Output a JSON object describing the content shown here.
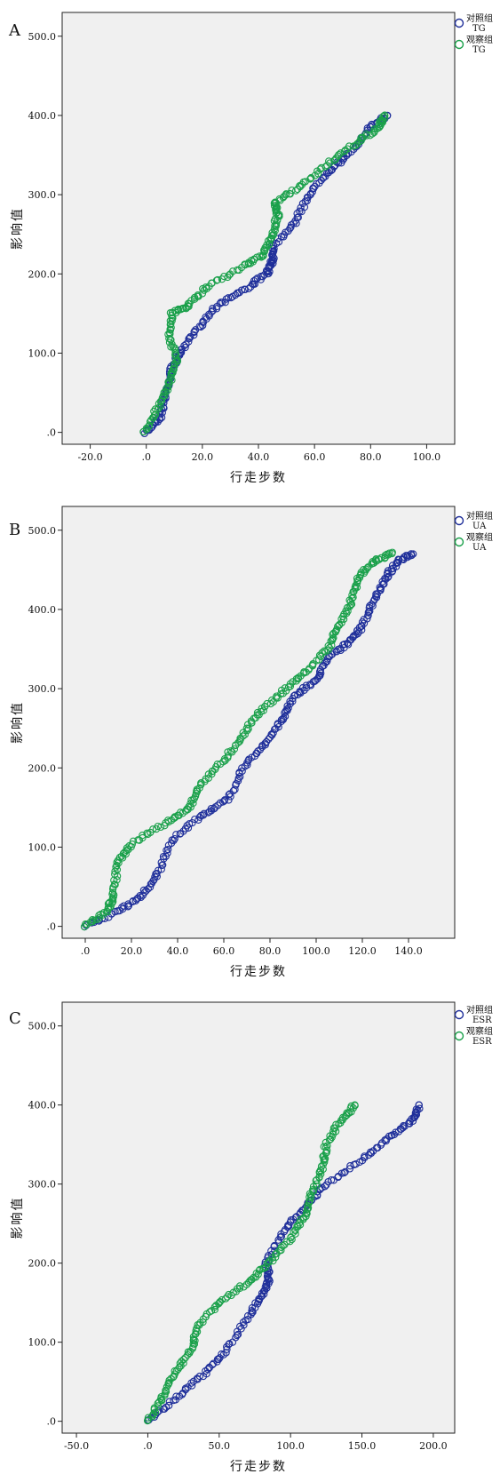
{
  "chart_data": [
    {
      "panel": "A",
      "type": "scatter",
      "xlabel": "行走步数",
      "ylabel": "影响值",
      "xlim": [
        -30,
        110
      ],
      "ylim": [
        -15,
        530
      ],
      "xticks": [
        -20,
        0,
        20,
        40,
        60,
        80,
        100
      ],
      "xtick_labels": [
        "-20.0",
        ".0",
        "20.0",
        "40.0",
        "60.0",
        "80.0",
        "100.0"
      ],
      "yticks": [
        0,
        100,
        200,
        300,
        400,
        500
      ],
      "ytick_labels": [
        ".0",
        "100.0",
        "200.0",
        "300.0",
        "400.0",
        "500.0"
      ],
      "legend": [
        {
          "line1": "对照组",
          "line2": "TG",
          "color": "#1f2f9a"
        },
        {
          "line1": "观察组",
          "line2": "TG",
          "color": "#1aa04a"
        }
      ],
      "series": [
        {
          "name": "对照组 TG",
          "color": "#1f2f9a",
          "points": [
            [
              0,
              0
            ],
            [
              5,
              20
            ],
            [
              7,
              50
            ],
            [
              9,
              80
            ],
            [
              12,
              100
            ],
            [
              18,
              130
            ],
            [
              25,
              160
            ],
            [
              35,
              180
            ],
            [
              43,
              200
            ],
            [
              45,
              215
            ],
            [
              45,
              235
            ],
            [
              53,
              265
            ],
            [
              58,
              300
            ],
            [
              65,
              330
            ],
            [
              72,
              350
            ],
            [
              80,
              385
            ],
            [
              86,
              400
            ]
          ]
        },
        {
          "name": "观察组 TG",
          "color": "#1aa04a",
          "points": [
            [
              -1,
              0
            ],
            [
              4,
              30
            ],
            [
              8,
              60
            ],
            [
              11,
              90
            ],
            [
              8,
              120
            ],
            [
              9,
              150
            ],
            [
              15,
              160
            ],
            [
              22,
              185
            ],
            [
              35,
              210
            ],
            [
              42,
              225
            ],
            [
              45,
              250
            ],
            [
              47,
              275
            ],
            [
              46,
              290
            ],
            [
              55,
              310
            ],
            [
              65,
              340
            ],
            [
              75,
              365
            ],
            [
              83,
              385
            ],
            [
              85,
              400
            ]
          ]
        }
      ]
    },
    {
      "panel": "B",
      "type": "scatter",
      "xlabel": "行走步数",
      "ylabel": "影响值",
      "xlim": [
        -10,
        160
      ],
      "ylim": [
        -15,
        530
      ],
      "xticks": [
        0,
        20,
        40,
        60,
        80,
        100,
        120,
        140
      ],
      "xtick_labels": [
        ".0",
        "20.0",
        "40.0",
        "60.0",
        "80.0",
        "100.0",
        "120.0",
        "140.0"
      ],
      "yticks": [
        0,
        100,
        200,
        300,
        400,
        500
      ],
      "ytick_labels": [
        ".0",
        "100.0",
        "200.0",
        "300.0",
        "400.0",
        "500.0"
      ],
      "legend": [
        {
          "line1": "对照组",
          "line2": "UA",
          "color": "#1f2f9a"
        },
        {
          "line1": "观察组",
          "line2": "UA",
          "color": "#1aa04a"
        }
      ],
      "series": [
        {
          "name": "对照组 UA",
          "color": "#1f2f9a",
          "points": [
            [
              0,
              0
            ],
            [
              15,
              20
            ],
            [
              25,
              40
            ],
            [
              32,
              70
            ],
            [
              38,
              110
            ],
            [
              50,
              140
            ],
            [
              62,
              160
            ],
            [
              68,
              200
            ],
            [
              78,
              230
            ],
            [
              85,
              260
            ],
            [
              90,
              290
            ],
            [
              100,
              310
            ],
            [
              105,
              340
            ],
            [
              115,
              360
            ],
            [
              120,
              380
            ],
            [
              125,
              410
            ],
            [
              130,
              440
            ],
            [
              135,
              460
            ],
            [
              142,
              470
            ]
          ]
        },
        {
          "name": "观察组 UA",
          "color": "#1aa04a",
          "points": [
            [
              0,
              0
            ],
            [
              10,
              20
            ],
            [
              12,
              40
            ],
            [
              14,
              80
            ],
            [
              20,
              105
            ],
            [
              35,
              130
            ],
            [
              45,
              150
            ],
            [
              50,
              180
            ],
            [
              60,
              210
            ],
            [
              68,
              240
            ],
            [
              75,
              270
            ],
            [
              85,
              295
            ],
            [
              95,
              320
            ],
            [
              105,
              350
            ],
            [
              110,
              380
            ],
            [
              115,
              410
            ],
            [
              118,
              440
            ],
            [
              125,
              460
            ],
            [
              133,
              472
            ]
          ]
        }
      ]
    },
    {
      "panel": "C",
      "type": "scatter",
      "xlabel": "行走步数",
      "ylabel": "影响值",
      "xlim": [
        -60,
        215
      ],
      "ylim": [
        -15,
        530
      ],
      "xticks": [
        -50,
        0,
        50,
        100,
        150,
        200
      ],
      "xtick_labels": [
        "-50.0",
        ".0",
        "50.0",
        "100.0",
        "150.0",
        "200.0"
      ],
      "yticks": [
        0,
        100,
        200,
        300,
        400,
        500
      ],
      "ytick_labels": [
        ".0",
        "100.0",
        "200.0",
        "300.0",
        "400.0",
        "500.0"
      ],
      "legend": [
        {
          "line1": "对照组",
          "line2": "ESR",
          "color": "#1f2f9a"
        },
        {
          "line1": "观察组",
          "line2": "ESR",
          "color": "#1aa04a"
        }
      ],
      "series": [
        {
          "name": "对照组 ESR",
          "color": "#1f2f9a",
          "points": [
            [
              0,
              0
            ],
            [
              20,
              30
            ],
            [
              40,
              60
            ],
            [
              55,
              90
            ],
            [
              70,
              130
            ],
            [
              80,
              160
            ],
            [
              85,
              180
            ],
            [
              83,
              200
            ],
            [
              95,
              240
            ],
            [
              110,
              270
            ],
            [
              125,
              300
            ],
            [
              150,
              330
            ],
            [
              170,
              360
            ],
            [
              185,
              380
            ],
            [
              190,
              400
            ]
          ]
        },
        {
          "name": "观察组 ESR",
          "color": "#1aa04a",
          "points": [
            [
              0,
              0
            ],
            [
              10,
              30
            ],
            [
              18,
              60
            ],
            [
              30,
              90
            ],
            [
              35,
              120
            ],
            [
              50,
              150
            ],
            [
              70,
              175
            ],
            [
              85,
              200
            ],
            [
              100,
              230
            ],
            [
              110,
              260
            ],
            [
              115,
              290
            ],
            [
              122,
              320
            ],
            [
              125,
              350
            ],
            [
              135,
              380
            ],
            [
              145,
              400
            ]
          ]
        }
      ]
    }
  ]
}
